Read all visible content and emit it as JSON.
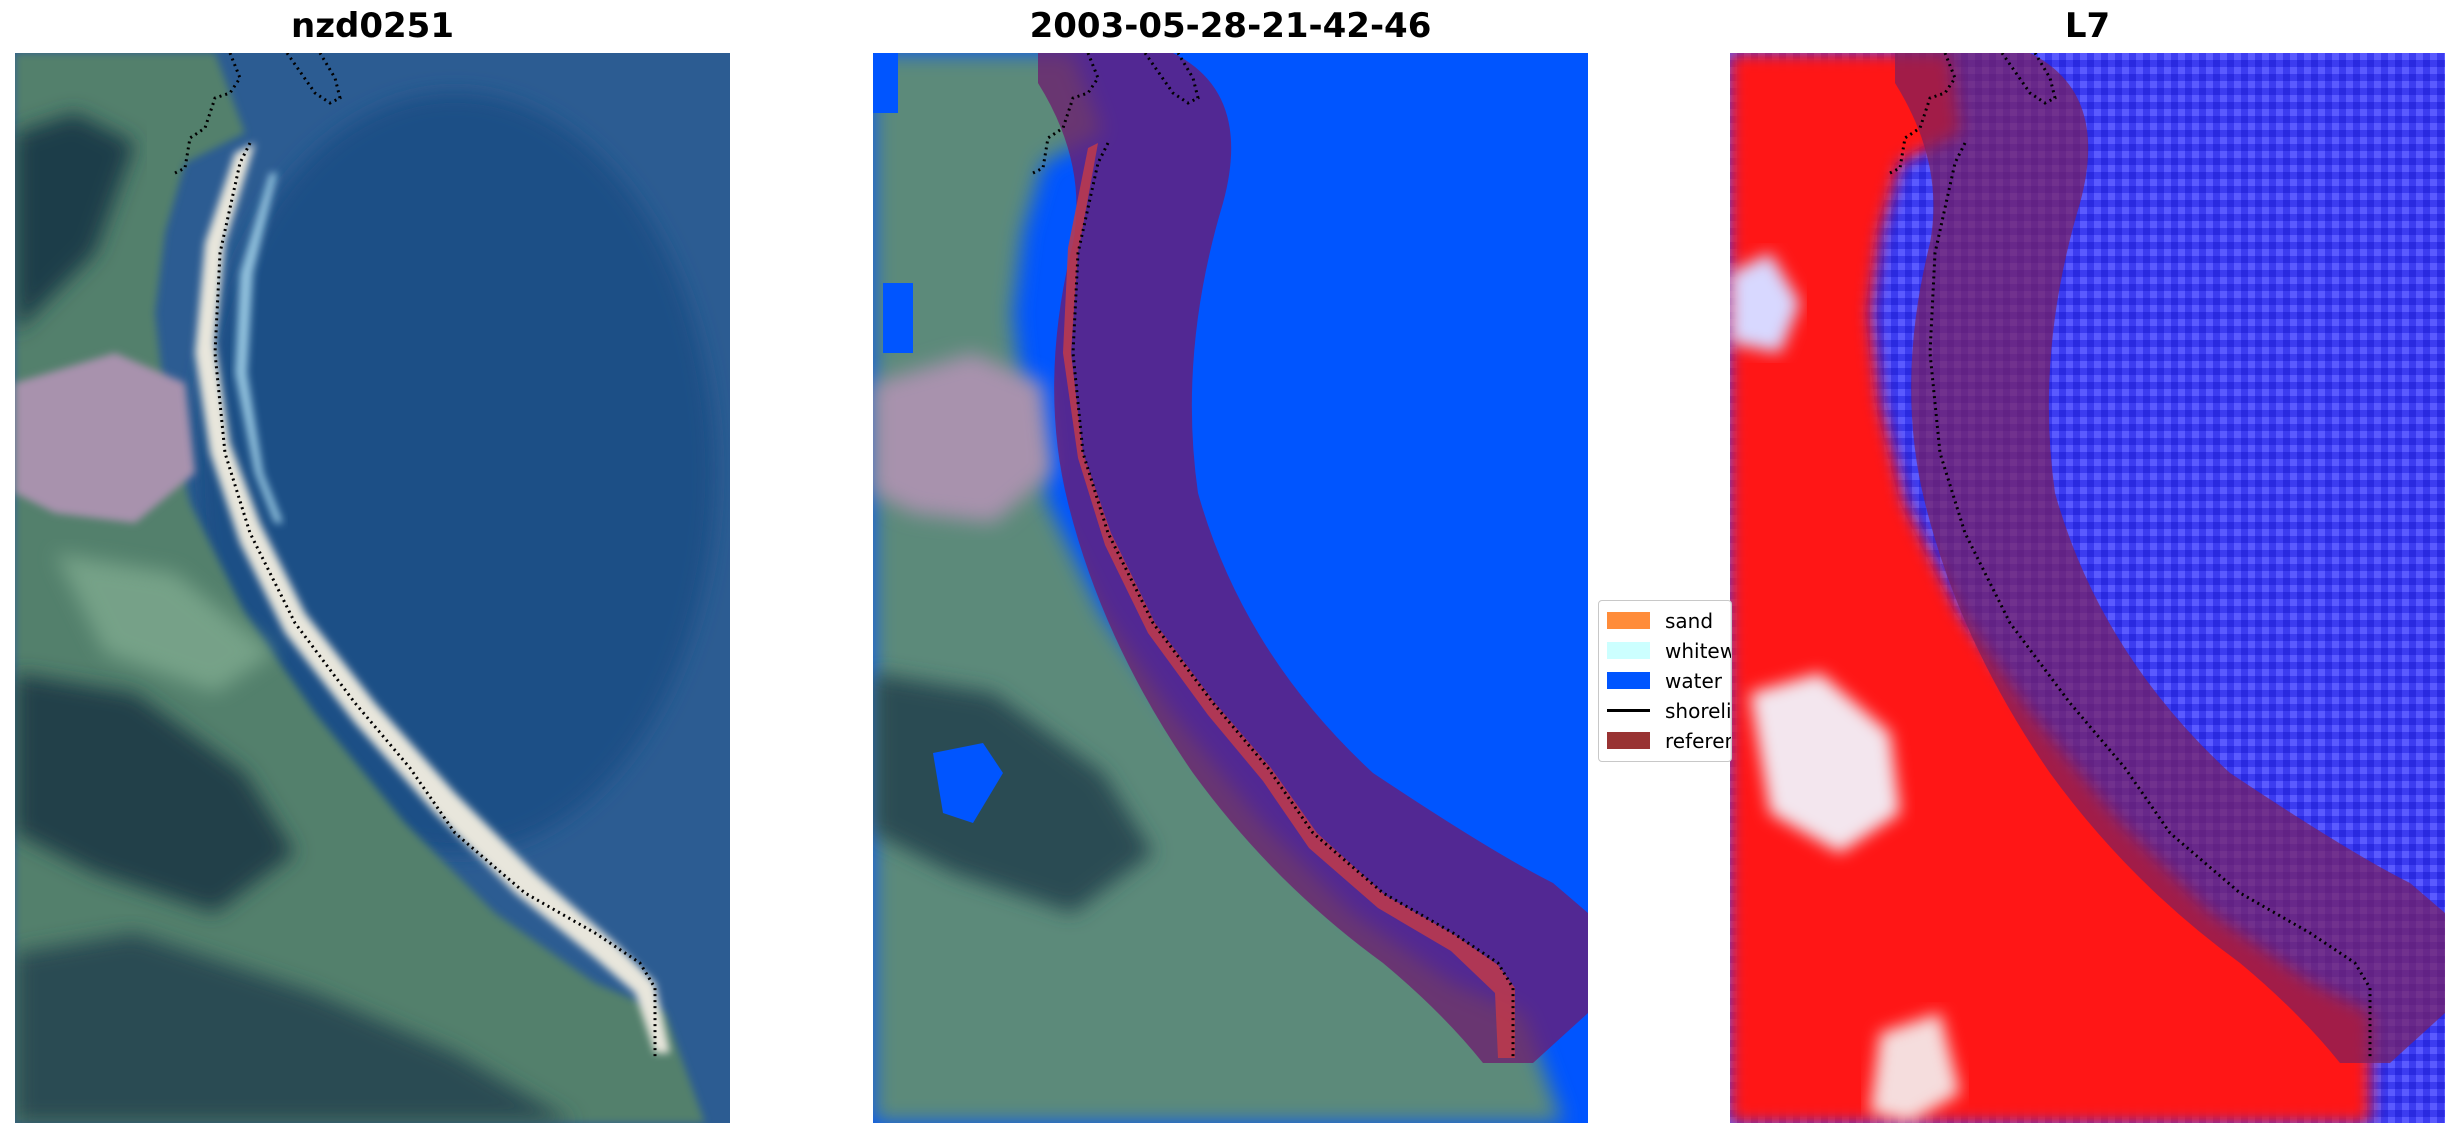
{
  "panels": [
    {
      "title": "nzd0251",
      "kind": "rgb"
    },
    {
      "title": "2003-05-28-21-42-46",
      "kind": "classified"
    },
    {
      "title": "L7",
      "kind": "index"
    }
  ],
  "legend": {
    "items": [
      {
        "label": "sand",
        "color": "#ff8c3a",
        "type": "patch"
      },
      {
        "label": "whitewater",
        "color": "#ccffff",
        "type": "patch"
      },
      {
        "label": "water",
        "color": "#0055ff",
        "type": "patch"
      },
      {
        "label": "shoreline",
        "color": "#000000",
        "type": "line"
      },
      {
        "label": "reference shoreline buffer",
        "color": "#993333",
        "type": "patch"
      }
    ]
  },
  "colors": {
    "water_class": "#0055ff",
    "buffer": "#8b1a2e",
    "land_green": "#5c8a78",
    "sea_blue": "#2f5e93",
    "index_red": "#ff1010",
    "index_blue": "#3a3af5"
  }
}
